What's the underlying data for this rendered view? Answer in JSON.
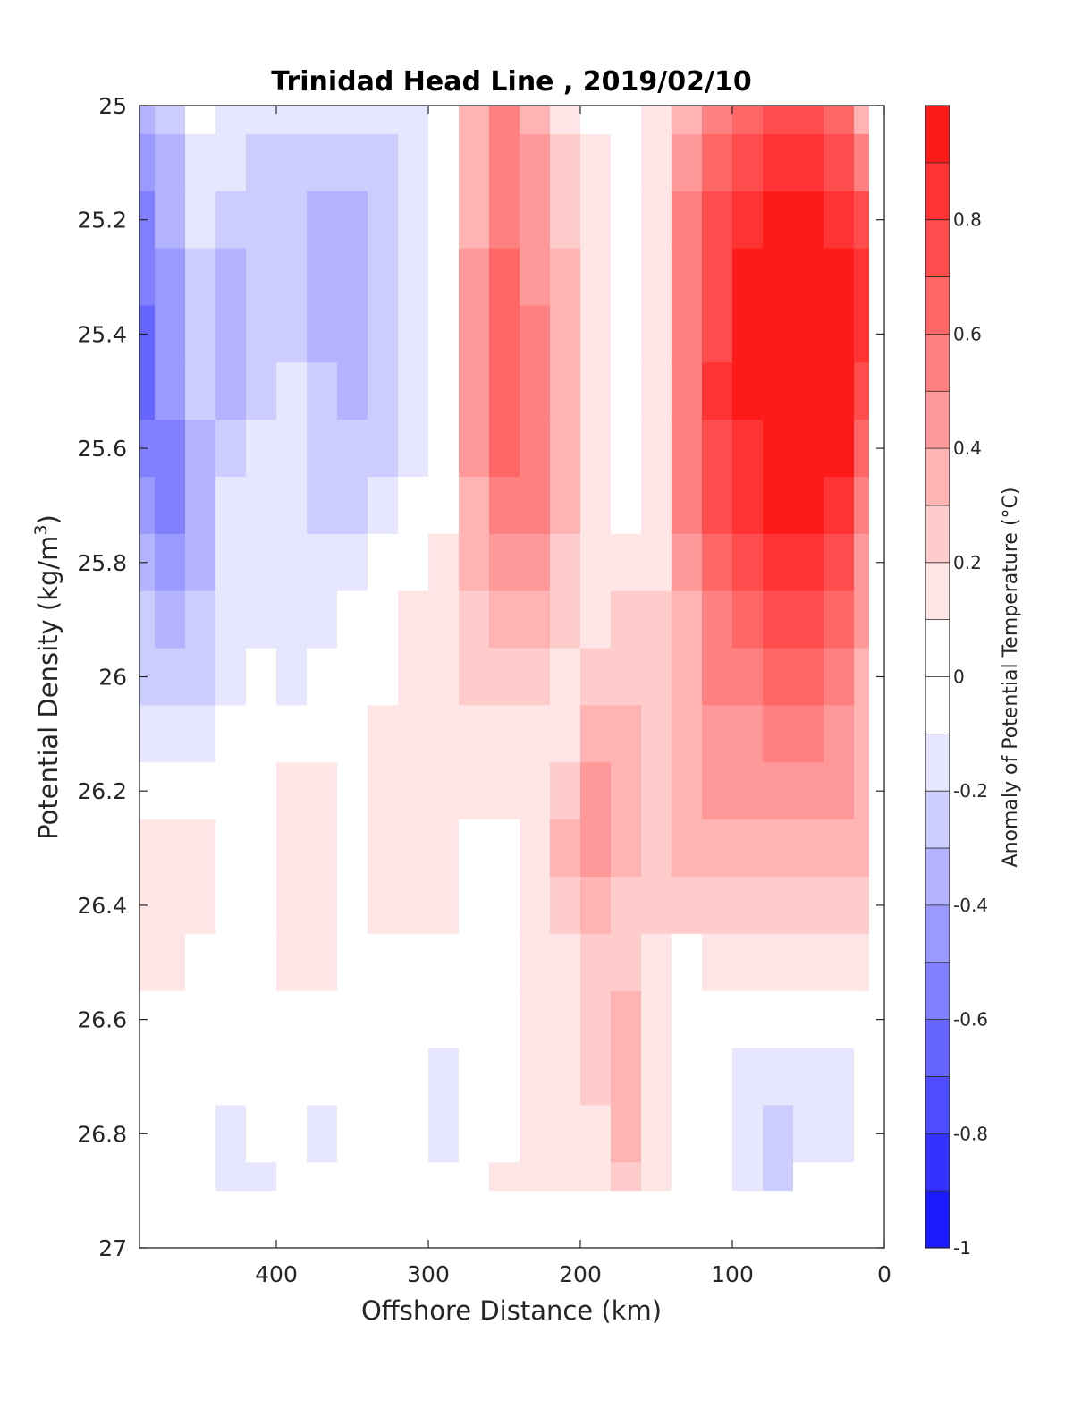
{
  "chart_data": {
    "type": "heatmap",
    "title": "Trinidad Head Line , 2019/02/10",
    "xlabel": "Offshore Distance (km)",
    "ylabel": "Potential Density (kg/m",
    "ylabel_sup": "3",
    "ylabel_close": ")",
    "xlim": [
      490,
      0
    ],
    "ylim": [
      25,
      27
    ],
    "x_reversed": true,
    "y_reversed": true,
    "xticks": [
      400,
      300,
      200,
      100,
      0
    ],
    "yticks": [
      25,
      25.2,
      25.4,
      25.6,
      25.8,
      26,
      26.2,
      26.4,
      26.6,
      26.8,
      27
    ],
    "data_range": {
      "x": [
        490,
        10
      ],
      "y": [
        25,
        26.9
      ]
    },
    "colorbar": {
      "label": "Anomaly of Potential Temperature (°C)",
      "range": [
        -1,
        1
      ],
      "step": 0.1,
      "ticks": [
        -1,
        -0.8,
        -0.6,
        -0.4,
        -0.2,
        0,
        0.2,
        0.4,
        0.6,
        0.8
      ],
      "neg_color": "#0000ff",
      "pos_color": "#ff0000"
    },
    "x": [
      490,
      470,
      450,
      430,
      410,
      390,
      370,
      350,
      330,
      310,
      290,
      270,
      250,
      230,
      210,
      190,
      170,
      150,
      130,
      110,
      90,
      70,
      50,
      30,
      10
    ],
    "y": [
      25.0,
      25.1,
      25.2,
      25.3,
      25.4,
      25.5,
      25.6,
      25.7,
      25.8,
      25.9,
      26.0,
      26.1,
      26.2,
      26.3,
      26.4,
      26.5,
      26.6,
      26.7,
      26.8,
      26.9
    ],
    "anomaly": [
      [
        -0.3,
        -0.2,
        0.0,
        -0.1,
        -0.1,
        -0.1,
        -0.1,
        -0.1,
        -0.1,
        -0.1,
        0.0,
        0.3,
        0.5,
        0.3,
        0.1,
        0.0,
        0.0,
        0.1,
        0.3,
        0.5,
        0.6,
        0.7,
        0.7,
        0.6,
        0.3
      ],
      [
        -0.4,
        -0.3,
        -0.1,
        -0.1,
        -0.2,
        -0.2,
        -0.2,
        -0.2,
        -0.2,
        -0.1,
        0.0,
        0.3,
        0.5,
        0.4,
        0.2,
        0.1,
        0.0,
        0.1,
        0.4,
        0.6,
        0.7,
        0.8,
        0.8,
        0.7,
        0.5
      ],
      [
        -0.5,
        -0.3,
        -0.1,
        -0.2,
        -0.2,
        -0.2,
        -0.3,
        -0.3,
        -0.2,
        -0.1,
        0.0,
        0.3,
        0.5,
        0.4,
        0.2,
        0.1,
        -0.05,
        0.1,
        0.5,
        0.7,
        0.8,
        0.9,
        0.9,
        0.8,
        0.7
      ],
      [
        -0.5,
        -0.4,
        -0.2,
        -0.3,
        -0.2,
        -0.2,
        -0.3,
        -0.3,
        -0.2,
        -0.1,
        0.0,
        0.4,
        0.6,
        0.4,
        0.3,
        0.1,
        -0.05,
        0.15,
        0.5,
        0.7,
        0.9,
        0.95,
        0.95,
        0.9,
        0.8
      ],
      [
        -0.6,
        -0.4,
        -0.2,
        -0.3,
        -0.2,
        -0.2,
        -0.3,
        -0.3,
        -0.2,
        -0.1,
        0.0,
        0.4,
        0.6,
        0.5,
        0.3,
        0.1,
        -0.05,
        0.15,
        0.5,
        0.7,
        0.9,
        0.95,
        0.95,
        0.9,
        0.8
      ],
      [
        -0.6,
        -0.4,
        -0.2,
        -0.3,
        -0.2,
        -0.1,
        -0.2,
        -0.3,
        -0.2,
        -0.1,
        0.0,
        0.4,
        0.6,
        0.5,
        0.3,
        0.1,
        -0.05,
        0.15,
        0.5,
        0.8,
        0.9,
        0.95,
        0.95,
        0.9,
        0.7
      ],
      [
        -0.5,
        -0.5,
        -0.3,
        -0.2,
        -0.1,
        -0.1,
        -0.2,
        -0.2,
        -0.2,
        -0.1,
        0.0,
        0.4,
        0.6,
        0.5,
        0.3,
        0.1,
        -0.05,
        0.15,
        0.5,
        0.7,
        0.8,
        0.9,
        0.95,
        0.9,
        0.6
      ],
      [
        -0.4,
        -0.5,
        -0.3,
        -0.1,
        -0.1,
        -0.1,
        -0.2,
        -0.2,
        -0.1,
        0.0,
        0.0,
        0.3,
        0.5,
        0.5,
        0.3,
        0.1,
        0.0,
        0.15,
        0.5,
        0.7,
        0.8,
        0.9,
        0.9,
        0.8,
        0.5
      ],
      [
        -0.3,
        -0.4,
        -0.3,
        -0.1,
        -0.1,
        -0.1,
        -0.1,
        -0.1,
        0.0,
        0.0,
        0.1,
        0.3,
        0.4,
        0.4,
        0.2,
        0.1,
        0.1,
        0.15,
        0.4,
        0.6,
        0.7,
        0.8,
        0.8,
        0.7,
        0.4
      ],
      [
        -0.2,
        -0.3,
        -0.2,
        -0.1,
        -0.1,
        -0.1,
        -0.1,
        0.0,
        0.0,
        0.1,
        0.1,
        0.2,
        0.3,
        0.3,
        0.2,
        0.1,
        0.2,
        0.2,
        0.3,
        0.5,
        0.6,
        0.7,
        0.7,
        0.6,
        0.4
      ],
      [
        -0.2,
        -0.2,
        -0.2,
        -0.1,
        0.0,
        -0.1,
        0.0,
        0.0,
        0.0,
        0.1,
        0.1,
        0.2,
        0.2,
        0.2,
        0.15,
        0.2,
        0.2,
        0.2,
        0.3,
        0.5,
        0.5,
        0.6,
        0.6,
        0.5,
        0.3
      ],
      [
        -0.1,
        -0.1,
        -0.1,
        0.0,
        0.0,
        0.0,
        0.0,
        0.0,
        0.1,
        0.1,
        0.1,
        0.1,
        0.15,
        0.15,
        0.15,
        0.3,
        0.3,
        0.2,
        0.3,
        0.4,
        0.4,
        0.5,
        0.5,
        0.4,
        0.3
      ],
      [
        0.0,
        0.0,
        0.0,
        0.0,
        0.0,
        0.1,
        0.1,
        0.0,
        0.1,
        0.1,
        0.1,
        0.1,
        0.1,
        0.15,
        0.2,
        0.4,
        0.3,
        0.2,
        0.3,
        0.4,
        0.4,
        0.4,
        0.4,
        0.4,
        0.3
      ],
      [
        0.1,
        0.1,
        0.1,
        0.0,
        0.0,
        0.1,
        0.1,
        0.0,
        0.1,
        0.1,
        0.1,
        0.05,
        0.0,
        0.15,
        0.3,
        0.45,
        0.3,
        0.2,
        0.3,
        0.3,
        0.3,
        0.3,
        0.3,
        0.3,
        0.3
      ],
      [
        0.1,
        0.1,
        0.1,
        0.0,
        0.0,
        0.1,
        0.1,
        0.0,
        0.1,
        0.1,
        0.1,
        0.05,
        0.0,
        0.1,
        0.2,
        0.3,
        0.25,
        0.2,
        0.2,
        0.2,
        0.2,
        0.2,
        0.2,
        0.2,
        0.2
      ],
      [
        0.1,
        0.1,
        0.05,
        0.0,
        0.0,
        0.1,
        0.1,
        0.0,
        0.0,
        0.0,
        0.0,
        0.0,
        0.0,
        0.1,
        0.1,
        0.2,
        0.2,
        0.1,
        0.0,
        0.1,
        0.1,
        0.1,
        0.1,
        0.1,
        0.1
      ],
      [
        0.0,
        0.0,
        0.0,
        0.0,
        0.0,
        0.0,
        0.0,
        0.0,
        0.0,
        0.0,
        0.0,
        0.0,
        0.0,
        0.1,
        0.1,
        0.2,
        0.3,
        0.1,
        0.0,
        0.0,
        0.0,
        0.0,
        0.0,
        0.0,
        0.0
      ],
      [
        0.0,
        0.0,
        0.0,
        0.0,
        0.0,
        0.0,
        0.0,
        0.0,
        0.0,
        0.0,
        -0.1,
        0.0,
        0.0,
        0.1,
        0.1,
        0.2,
        0.3,
        0.1,
        0.0,
        0.0,
        -0.1,
        -0.1,
        -0.1,
        -0.1,
        0.0
      ],
      [
        0.0,
        0.0,
        -0.05,
        -0.1,
        -0.05,
        0.0,
        -0.1,
        0.0,
        0.0,
        0.0,
        -0.1,
        0.0,
        0.05,
        0.1,
        0.1,
        0.15,
        0.3,
        0.1,
        0.0,
        0.0,
        -0.1,
        -0.2,
        -0.1,
        -0.1,
        0.0
      ],
      [
        0.0,
        0.0,
        -0.05,
        -0.1,
        -0.1,
        -0.05,
        0.0,
        0.0,
        0.0,
        0.0,
        0.0,
        0.0,
        0.1,
        0.1,
        0.1,
        0.15,
        0.2,
        0.1,
        0.0,
        0.0,
        -0.1,
        -0.2,
        0.0,
        0.0,
        0.0
      ]
    ]
  }
}
